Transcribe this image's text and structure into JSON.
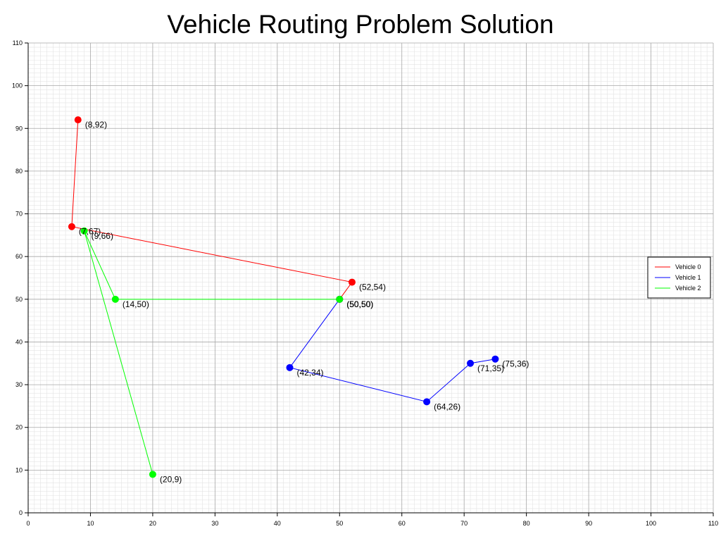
{
  "chart_data": {
    "type": "line",
    "title": "Vehicle Routing Problem Solution",
    "xlabel": "",
    "ylabel": "",
    "xlim": [
      0,
      110
    ],
    "ylim": [
      0,
      110
    ],
    "x_ticks": [
      0,
      10,
      20,
      30,
      40,
      50,
      60,
      70,
      80,
      90,
      100,
      110
    ],
    "y_ticks": [
      0,
      10,
      20,
      30,
      40,
      50,
      60,
      70,
      80,
      90,
      100,
      110
    ],
    "grid": {
      "major": true,
      "minor": true,
      "minor_step": 1
    },
    "legend": {
      "position": "right",
      "entries": [
        "Vehicle 0",
        "Vehicle 1",
        "Vehicle 2"
      ]
    },
    "series": [
      {
        "name": "Vehicle 0",
        "color": "#ff0000",
        "points": [
          {
            "x": 8,
            "y": 92,
            "label": "(8,92)"
          },
          {
            "x": 7,
            "y": 67,
            "label": "(7,67)"
          },
          {
            "x": 52,
            "y": 54,
            "label": "(52,54)"
          },
          {
            "x": 50,
            "y": 50,
            "label": "(50,50)"
          }
        ]
      },
      {
        "name": "Vehicle 1",
        "color": "#0000ff",
        "points": [
          {
            "x": 50,
            "y": 50,
            "label": "(50,50)"
          },
          {
            "x": 42,
            "y": 34,
            "label": "(42,34)"
          },
          {
            "x": 64,
            "y": 26,
            "label": "(64,26)"
          },
          {
            "x": 71,
            "y": 35,
            "label": "(71,35)"
          },
          {
            "x": 75,
            "y": 36,
            "label": "(75,36)"
          }
        ]
      },
      {
        "name": "Vehicle 2",
        "color": "#00ff00",
        "points": [
          {
            "x": 50,
            "y": 50,
            "label": "(50,50)"
          },
          {
            "x": 14,
            "y": 50,
            "label": "(14,50)"
          },
          {
            "x": 9,
            "y": 66,
            "label": "(9,66)"
          },
          {
            "x": 20,
            "y": 9,
            "label": "(20,9)"
          }
        ]
      }
    ]
  }
}
